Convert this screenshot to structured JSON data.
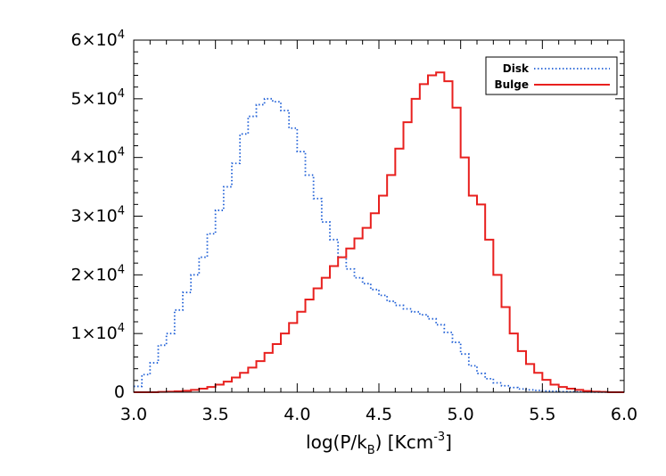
{
  "chart_data": {
    "type": "histogram",
    "title": "",
    "xlabel": {
      "main": "log(P/k",
      "sub": "B",
      "mid": ") [Kcm",
      "sup": "-3",
      "end": "]"
    },
    "ylabel": "",
    "xlim": [
      3.0,
      6.0
    ],
    "ylim": [
      0,
      60000
    ],
    "bin_width": 0.05,
    "bin_start": 3.0,
    "x_ticks": [
      "3.0",
      "3.5",
      "4.0",
      "4.5",
      "5.0",
      "5.5",
      "6.0"
    ],
    "y_ticks": [
      {
        "value": 0,
        "mant": "0",
        "exp": ""
      },
      {
        "value": 10000,
        "mant": "1×10",
        "exp": "4"
      },
      {
        "value": 20000,
        "mant": "2×10",
        "exp": "4"
      },
      {
        "value": 30000,
        "mant": "3×10",
        "exp": "4"
      },
      {
        "value": 40000,
        "mant": "4×10",
        "exp": "4"
      },
      {
        "value": 50000,
        "mant": "5×10",
        "exp": "4"
      },
      {
        "value": 60000,
        "mant": "6×10",
        "exp": "4"
      }
    ],
    "legend_position": "top-right",
    "series": [
      {
        "name": "Disk",
        "color": "#1f5fd6",
        "style": "dotted",
        "values": [
          1000,
          3000,
          5000,
          8000,
          10000,
          14000,
          17000,
          20000,
          23000,
          27000,
          31000,
          35000,
          39000,
          44000,
          47000,
          49000,
          50000,
          49500,
          48000,
          45000,
          41000,
          37000,
          33000,
          29000,
          26000,
          23000,
          21000,
          19500,
          18500,
          17500,
          16500,
          15500,
          14800,
          14200,
          13700,
          13200,
          12500,
          11500,
          10200,
          8500,
          6500,
          4500,
          3200,
          2300,
          1600,
          1100,
          800,
          550,
          400,
          300,
          200,
          150,
          100,
          80,
          60,
          40,
          30,
          20,
          10,
          5
        ]
      },
      {
        "name": "Bulge",
        "color": "#e8201e",
        "style": "solid",
        "values": [
          0,
          0,
          0,
          50,
          100,
          150,
          250,
          400,
          600,
          900,
          1300,
          1800,
          2500,
          3300,
          4200,
          5300,
          6700,
          8200,
          10000,
          11800,
          13700,
          15800,
          17700,
          19500,
          21500,
          23000,
          24500,
          26200,
          28000,
          30500,
          33500,
          37000,
          41500,
          46000,
          50000,
          52500,
          54000,
          54500,
          53000,
          48500,
          40000,
          33500,
          32000,
          26000,
          20000,
          14500,
          10000,
          7000,
          4800,
          3300,
          2100,
          1300,
          900,
          600,
          400,
          200,
          100,
          50,
          0,
          0
        ]
      }
    ]
  }
}
